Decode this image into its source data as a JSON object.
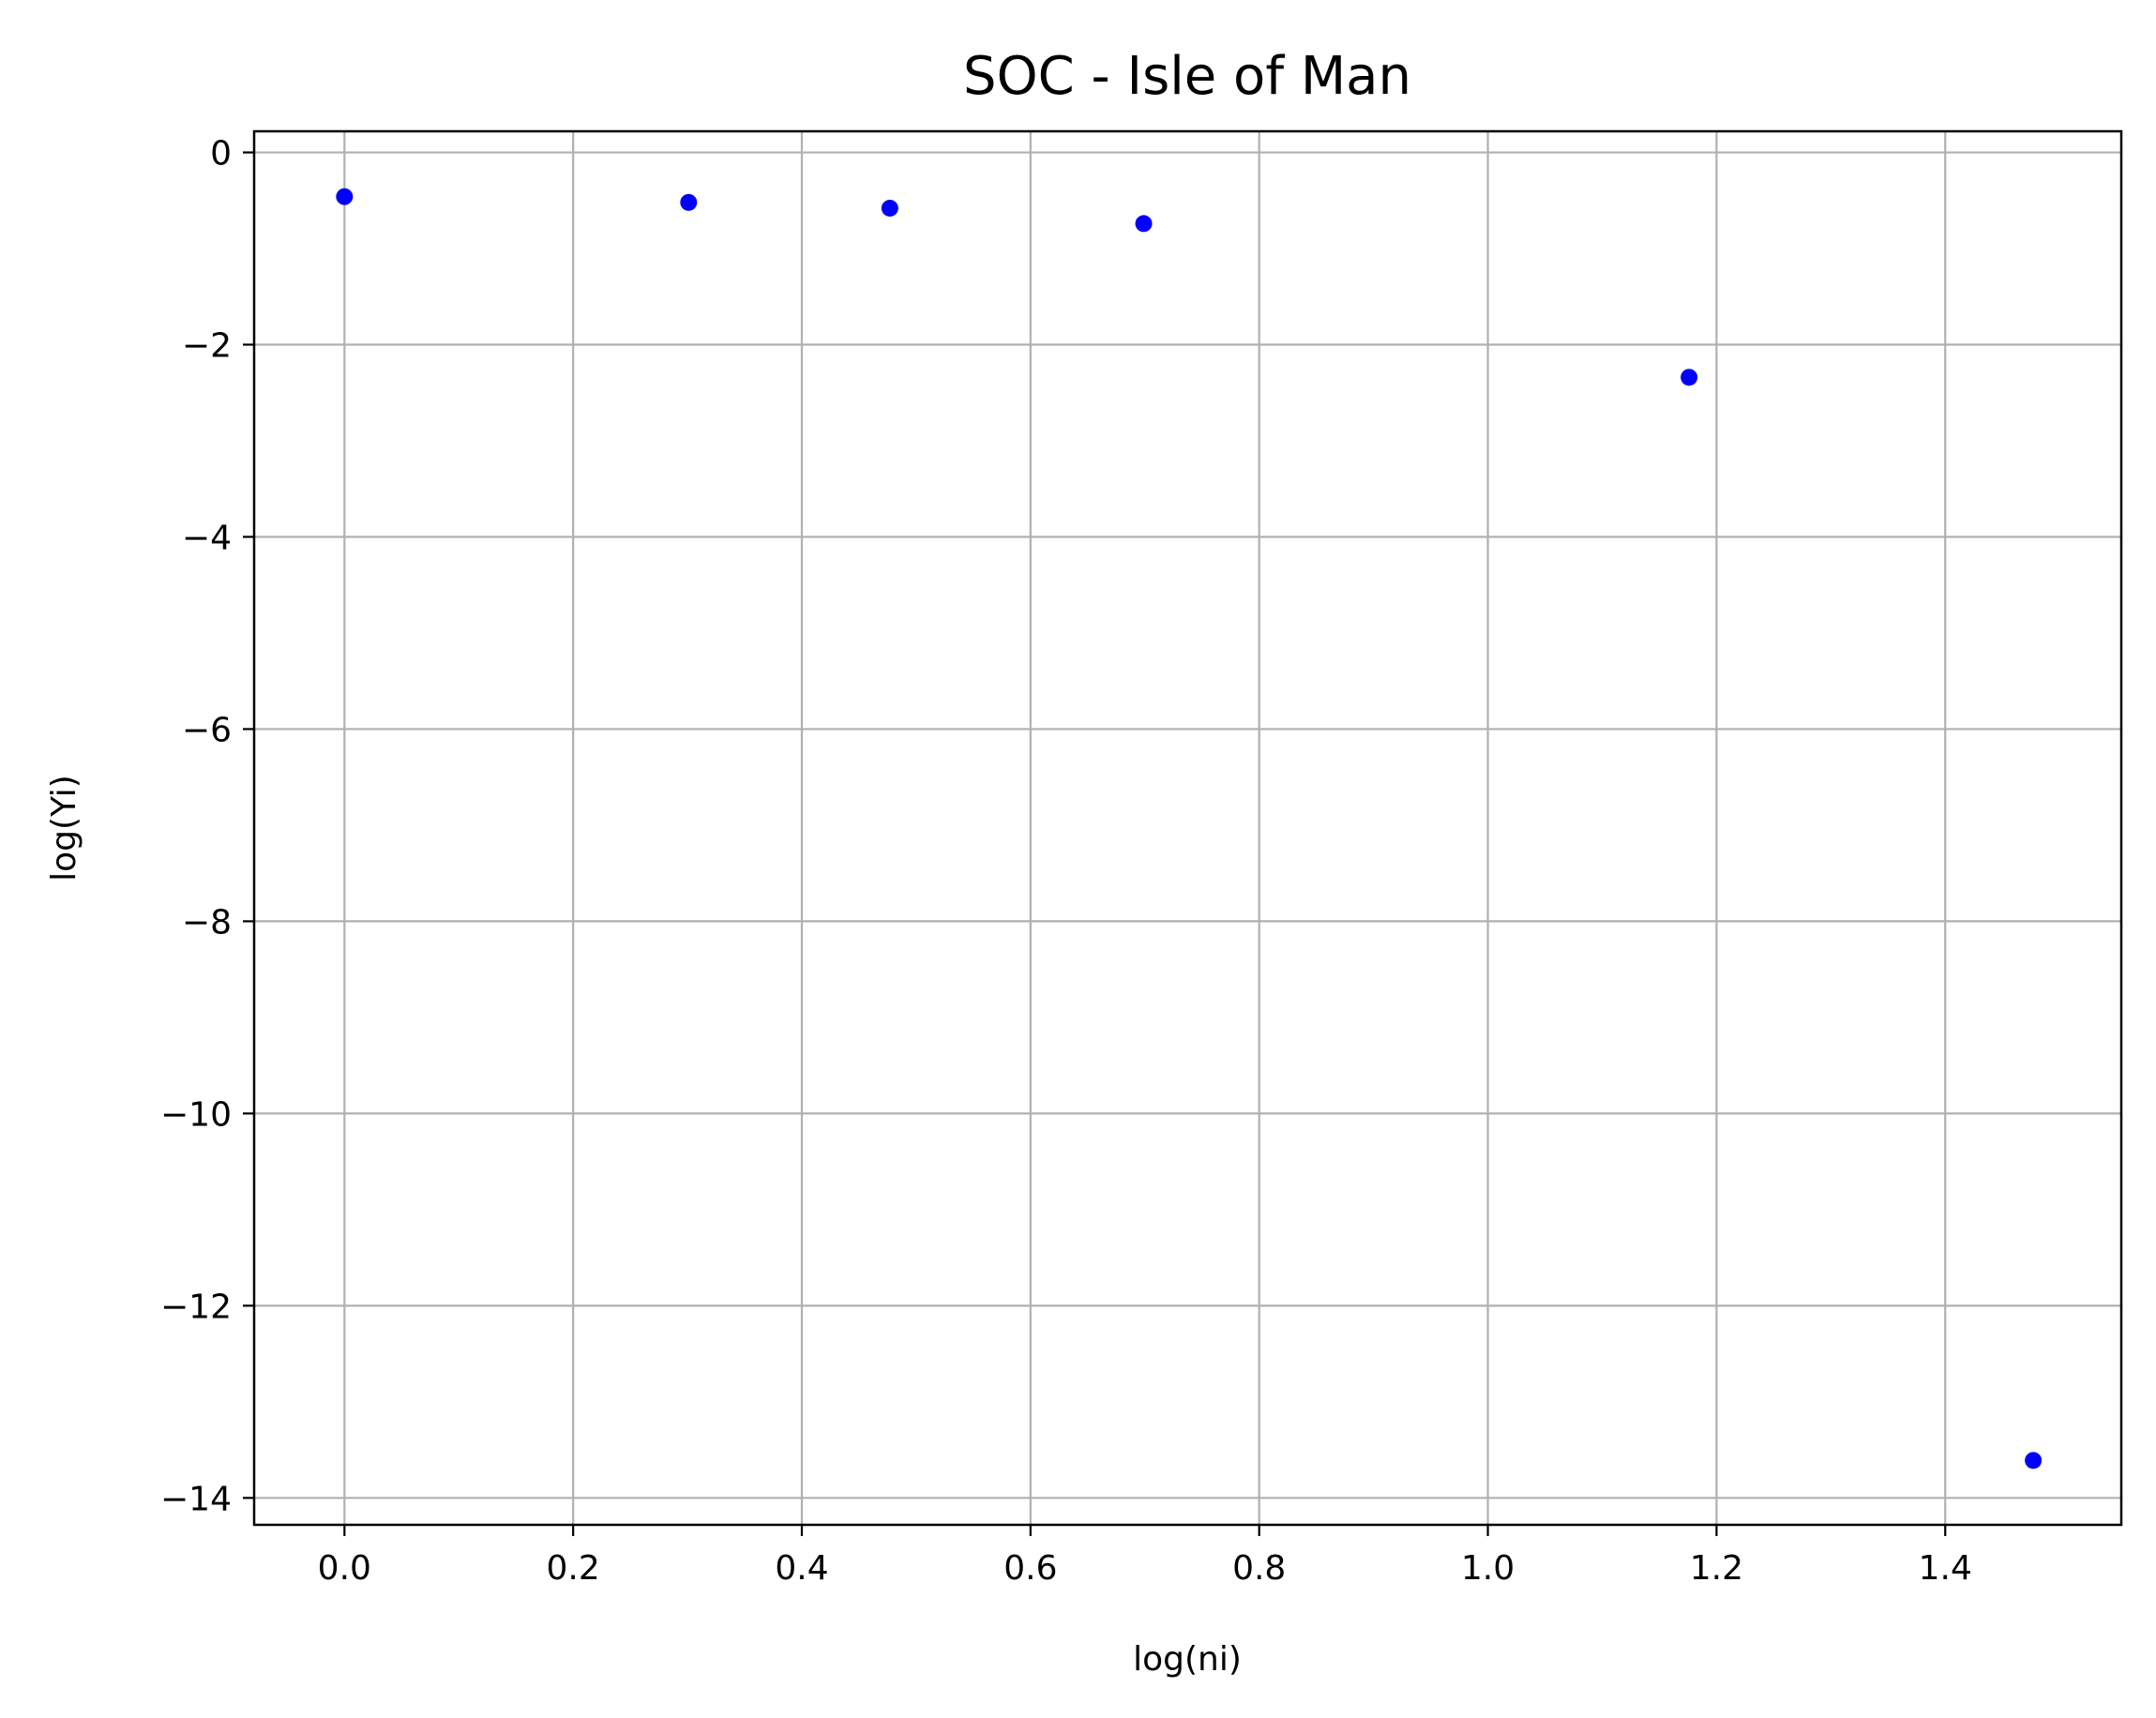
{
  "chart_data": {
    "type": "scatter",
    "title": "SOC - Isle of Man",
    "xlabel": "log(ni)",
    "ylabel": "log(Yi)",
    "xlim": [
      -0.079,
      1.554
    ],
    "ylim": [
      -14.28,
      0.22
    ],
    "xticks": [
      0.0,
      0.2,
      0.4,
      0.6,
      0.8,
      1.0,
      1.2,
      1.4
    ],
    "xtick_labels": [
      "0.0",
      "0.2",
      "0.4",
      "0.6",
      "0.8",
      "1.0",
      "1.2",
      "1.4"
    ],
    "yticks": [
      0,
      -2,
      -4,
      -6,
      -8,
      -10,
      -12,
      -14
    ],
    "ytick_labels": [
      "0",
      "−2",
      "−4",
      "−6",
      "−8",
      "−10",
      "−12",
      "−14"
    ],
    "grid": true,
    "legend": "none",
    "marker_color": "#0000ff",
    "grid_color": "#b0b0b0",
    "series": [
      {
        "x": [
          0.0,
          0.301,
          0.477,
          0.699,
          1.176,
          1.477
        ],
        "y": [
          -0.46,
          -0.52,
          -0.58,
          -0.74,
          -2.34,
          -13.61
        ]
      }
    ]
  }
}
